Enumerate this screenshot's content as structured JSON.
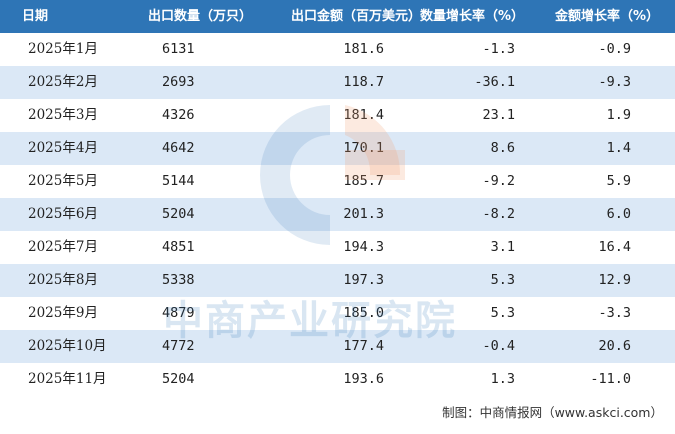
{
  "table": {
    "headers": [
      "日期",
      "出口数量（万只）",
      "出口金额（百万美元）",
      "数量增长率（%）",
      "金额增长率（%）"
    ],
    "rows": [
      [
        "2025年1月",
        "6131",
        "181.6",
        "-1.3",
        "-0.9"
      ],
      [
        "2025年2月",
        "2693",
        "118.7",
        "-36.1",
        "-9.3"
      ],
      [
        "2025年3月",
        "4326",
        "181.4",
        "23.1",
        "1.9"
      ],
      [
        "2025年4月",
        "4642",
        "170.1",
        "8.6",
        "1.4"
      ],
      [
        "2025年5月",
        "5144",
        "185.7",
        "-9.2",
        "5.9"
      ],
      [
        "2025年6月",
        "5204",
        "201.3",
        "-8.2",
        "6.0"
      ],
      [
        "2025年7月",
        "4851",
        "194.3",
        "3.1",
        "16.4"
      ],
      [
        "2025年8月",
        "5338",
        "197.3",
        "5.3",
        "12.9"
      ],
      [
        "2025年9月",
        "4879",
        "185.0",
        "5.3",
        "-3.3"
      ],
      [
        "2025年10月",
        "4772",
        "177.4",
        "-0.4",
        "20.6"
      ],
      [
        "2025年11月",
        "5204",
        "193.6",
        "1.3",
        "-11.0"
      ]
    ]
  },
  "watermark": {
    "text": "中商产业研究院"
  },
  "footer": {
    "source": "制图：中商情报网（www.askci.com）"
  },
  "colors": {
    "header_bg": "#2e75b6",
    "row_even": "#dbe8f6",
    "row_odd": "#ffffff",
    "watermark_blue": "#2e75b6",
    "watermark_orange": "#f0a070"
  }
}
